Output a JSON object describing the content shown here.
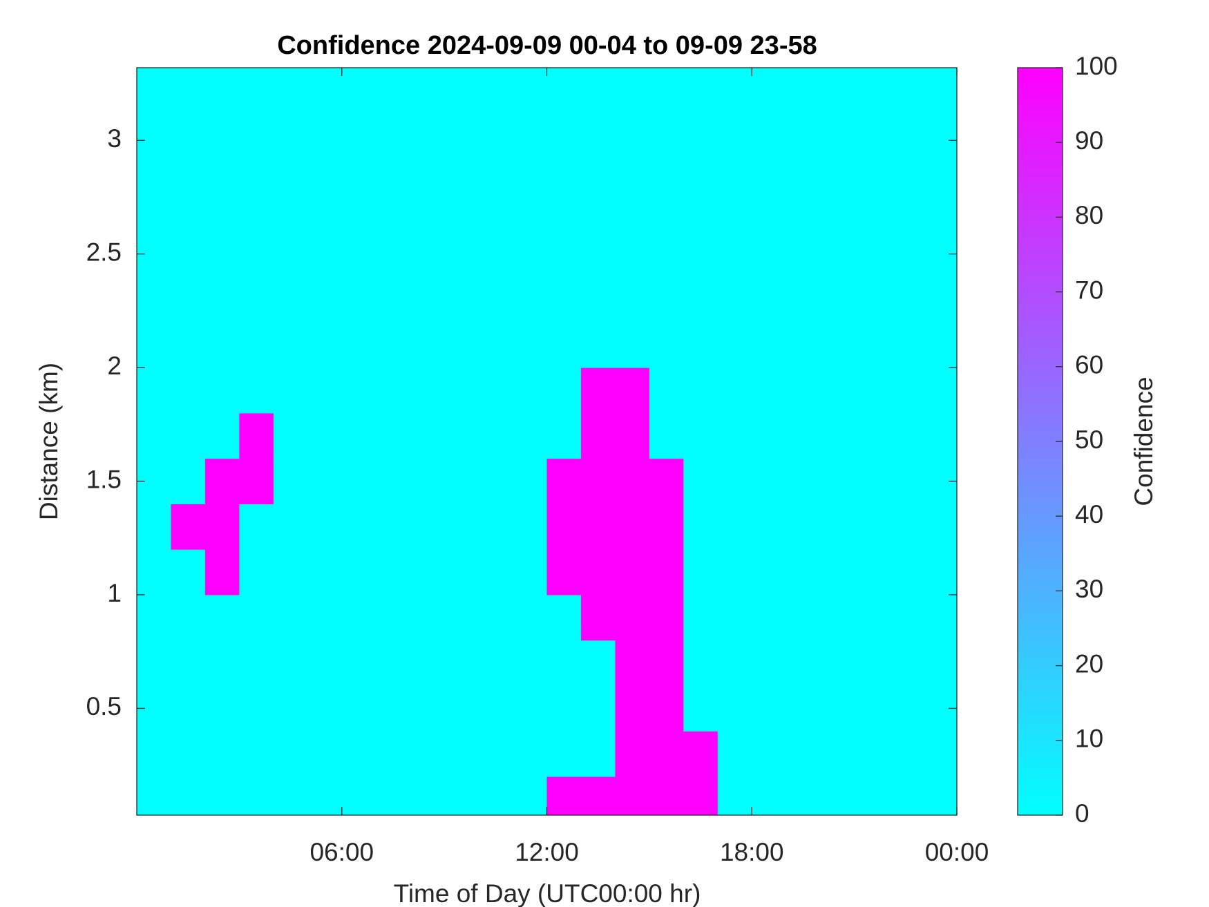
{
  "chart_data": {
    "type": "heatmap",
    "title": "Confidence 2024-09-09 00-04 to 09-09 23-58",
    "xlabel": "Time of Day (UTC00:00 hr)",
    "ylabel": "Distance (km)",
    "xlim": [
      0,
      24
    ],
    "xticks": [
      {
        "value": 6,
        "label": "06:00"
      },
      {
        "value": 12,
        "label": "12:00"
      },
      {
        "value": 18,
        "label": "18:00"
      },
      {
        "value": 24,
        "label": "00:00"
      }
    ],
    "ylim": [
      0.03,
      3.32
    ],
    "yticks": [
      0.5,
      1,
      1.5,
      2,
      2.5,
      3
    ],
    "x_edges": [
      0,
      1,
      2,
      3,
      4,
      5,
      6,
      7,
      8,
      9,
      10,
      11,
      12,
      13,
      14,
      15,
      16,
      17,
      18,
      19,
      20,
      21,
      22,
      23,
      24
    ],
    "y_edges": [
      0.03,
      0.2,
      0.4,
      0.6,
      0.8,
      1.0,
      1.2,
      1.4,
      1.6,
      1.8,
      2.0,
      2.2,
      2.4,
      2.6,
      2.8,
      3.0,
      3.2,
      3.32
    ],
    "z": [
      [
        0,
        0,
        0,
        0,
        0,
        0,
        0,
        0,
        0,
        0,
        0,
        0,
        100,
        100,
        100,
        100,
        100,
        0,
        0,
        0,
        0,
        0,
        0,
        0
      ],
      [
        0,
        0,
        0,
        0,
        0,
        0,
        0,
        0,
        0,
        0,
        0,
        0,
        0,
        0,
        100,
        100,
        100,
        0,
        0,
        0,
        0,
        0,
        0,
        0
      ],
      [
        0,
        0,
        0,
        0,
        0,
        0,
        0,
        0,
        0,
        0,
        0,
        0,
        0,
        0,
        100,
        100,
        0,
        0,
        0,
        0,
        0,
        0,
        0,
        0
      ],
      [
        0,
        0,
        0,
        0,
        0,
        0,
        0,
        0,
        0,
        0,
        0,
        0,
        0,
        0,
        100,
        100,
        0,
        0,
        0,
        0,
        0,
        0,
        0,
        0
      ],
      [
        0,
        0,
        0,
        0,
        0,
        0,
        0,
        0,
        0,
        0,
        0,
        0,
        0,
        100,
        100,
        100,
        0,
        0,
        0,
        0,
        0,
        0,
        0,
        0
      ],
      [
        0,
        0,
        100,
        0,
        0,
        0,
        0,
        0,
        0,
        0,
        0,
        0,
        100,
        100,
        100,
        100,
        0,
        0,
        0,
        0,
        0,
        0,
        0,
        0
      ],
      [
        0,
        100,
        100,
        0,
        0,
        0,
        0,
        0,
        0,
        0,
        0,
        0,
        100,
        100,
        100,
        100,
        0,
        0,
        0,
        0,
        0,
        0,
        0,
        0
      ],
      [
        0,
        0,
        100,
        100,
        0,
        0,
        0,
        0,
        0,
        0,
        0,
        0,
        100,
        100,
        100,
        100,
        0,
        0,
        0,
        0,
        0,
        0,
        0,
        0
      ],
      [
        0,
        0,
        0,
        100,
        0,
        0,
        0,
        0,
        0,
        0,
        0,
        0,
        0,
        100,
        100,
        0,
        0,
        0,
        0,
        0,
        0,
        0,
        0,
        0
      ],
      [
        0,
        0,
        0,
        0,
        0,
        0,
        0,
        0,
        0,
        0,
        0,
        0,
        0,
        100,
        100,
        0,
        0,
        0,
        0,
        0,
        0,
        0,
        0,
        0
      ],
      [
        0,
        0,
        0,
        0,
        0,
        0,
        0,
        0,
        0,
        0,
        0,
        0,
        0,
        0,
        0,
        0,
        0,
        0,
        0,
        0,
        0,
        0,
        0,
        0
      ],
      [
        0,
        0,
        0,
        0,
        0,
        0,
        0,
        0,
        0,
        0,
        0,
        0,
        0,
        0,
        0,
        0,
        0,
        0,
        0,
        0,
        0,
        0,
        0,
        0
      ],
      [
        0,
        0,
        0,
        0,
        0,
        0,
        0,
        0,
        0,
        0,
        0,
        0,
        0,
        0,
        0,
        0,
        0,
        0,
        0,
        0,
        0,
        0,
        0,
        0
      ],
      [
        0,
        0,
        0,
        0,
        0,
        0,
        0,
        0,
        0,
        0,
        0,
        0,
        0,
        0,
        0,
        0,
        0,
        0,
        0,
        0,
        0,
        0,
        0,
        0
      ],
      [
        0,
        0,
        0,
        0,
        0,
        0,
        0,
        0,
        0,
        0,
        0,
        0,
        0,
        0,
        0,
        0,
        0,
        0,
        0,
        0,
        0,
        0,
        0,
        0
      ],
      [
        0,
        0,
        0,
        0,
        0,
        0,
        0,
        0,
        0,
        0,
        0,
        0,
        0,
        0,
        0,
        0,
        0,
        0,
        0,
        0,
        0,
        0,
        0,
        0
      ],
      [
        0,
        0,
        0,
        0,
        0,
        0,
        0,
        0,
        0,
        0,
        0,
        0,
        0,
        0,
        0,
        0,
        0,
        0,
        0,
        0,
        0,
        0,
        0,
        0
      ]
    ],
    "colormap": [
      "#00ffff",
      "#ff00ff"
    ],
    "colorbar": {
      "label": "Confidence",
      "lim": [
        0,
        100
      ],
      "ticks": [
        0,
        10,
        20,
        30,
        40,
        50,
        60,
        70,
        80,
        90,
        100
      ]
    }
  }
}
